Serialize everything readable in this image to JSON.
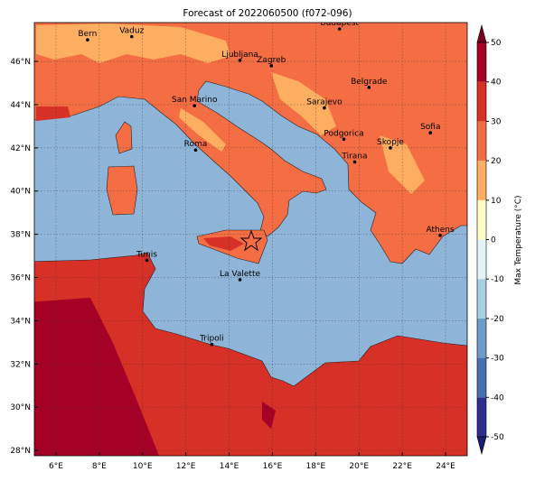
{
  "map": {
    "title": "Forecast of 2022060500 (f072-096)",
    "lonlim": [
      5,
      25
    ],
    "latlim": [
      27.75,
      47.8
    ],
    "lonticks": [
      {
        "value": 6,
        "label": "6°E"
      },
      {
        "value": 8,
        "label": "8°E"
      },
      {
        "value": 10,
        "label": "10°E"
      },
      {
        "value": 12,
        "label": "12°E"
      },
      {
        "value": 14,
        "label": "14°E"
      },
      {
        "value": 16,
        "label": "16°E"
      },
      {
        "value": 18,
        "label": "18°E"
      },
      {
        "value": 20,
        "label": "20°E"
      },
      {
        "value": 22,
        "label": "22°E"
      },
      {
        "value": 24,
        "label": "24°E"
      }
    ],
    "latticks": [
      {
        "value": 28,
        "label": "28°N"
      },
      {
        "value": 30,
        "label": "30°N"
      },
      {
        "value": 32,
        "label": "32°N"
      },
      {
        "value": 34,
        "label": "34°N"
      },
      {
        "value": 36,
        "label": "36°N"
      },
      {
        "value": 38,
        "label": "38°N"
      },
      {
        "value": 40,
        "label": "40°N"
      },
      {
        "value": 42,
        "label": "42°N"
      },
      {
        "value": 44,
        "label": "44°N"
      },
      {
        "value": 46,
        "label": "46°N"
      }
    ],
    "grid": true,
    "cities": [
      {
        "name": "Bern",
        "lon": 7.46,
        "lat": 47.0
      },
      {
        "name": "Vaduz",
        "lon": 9.5,
        "lat": 47.15
      },
      {
        "name": "Budapest",
        "lon": 19.1,
        "lat": 47.5
      },
      {
        "name": "Ljubljana",
        "lon": 14.5,
        "lat": 46.05
      },
      {
        "name": "Zagreb",
        "lon": 15.95,
        "lat": 45.8
      },
      {
        "name": "Belgrade",
        "lon": 20.46,
        "lat": 44.8
      },
      {
        "name": "San Marino",
        "lon": 12.4,
        "lat": 43.95
      },
      {
        "name": "Sarajevo",
        "lon": 18.4,
        "lat": 43.85
      },
      {
        "name": "Sofia",
        "lon": 23.3,
        "lat": 42.7
      },
      {
        "name": "Roma",
        "lon": 12.45,
        "lat": 41.9
      },
      {
        "name": "Podgorica",
        "lon": 19.3,
        "lat": 42.4
      },
      {
        "name": "Skopje",
        "lon": 21.45,
        "lat": 42.0
      },
      {
        "name": "Tirana",
        "lon": 19.8,
        "lat": 41.35
      },
      {
        "name": "Athens",
        "lon": 23.75,
        "lat": 37.95
      },
      {
        "name": "Tunis",
        "lon": 10.2,
        "lat": 36.8
      },
      {
        "name": "La Valette",
        "lon": 14.5,
        "lat": 35.9
      },
      {
        "name": "Tripoli",
        "lon": 13.2,
        "lat": 32.9
      }
    ],
    "colorbar": {
      "label": "Max Temperature (°C)",
      "lim": [
        -50,
        50
      ],
      "ticks": [
        -50,
        -40,
        -30,
        -20,
        -10,
        0,
        10,
        20,
        30,
        40,
        50
      ],
      "colors": [
        "#2c2f8e",
        "#4a6fb0",
        "#6f9bc9",
        "#a7cde3",
        "#e3f4f8",
        "#fffcc4",
        "#fdae61",
        "#f46d43",
        "#d73027",
        "#a50026"
      ],
      "under_color": "#1b1d6e",
      "over_color": "#7a0020"
    }
  }
}
